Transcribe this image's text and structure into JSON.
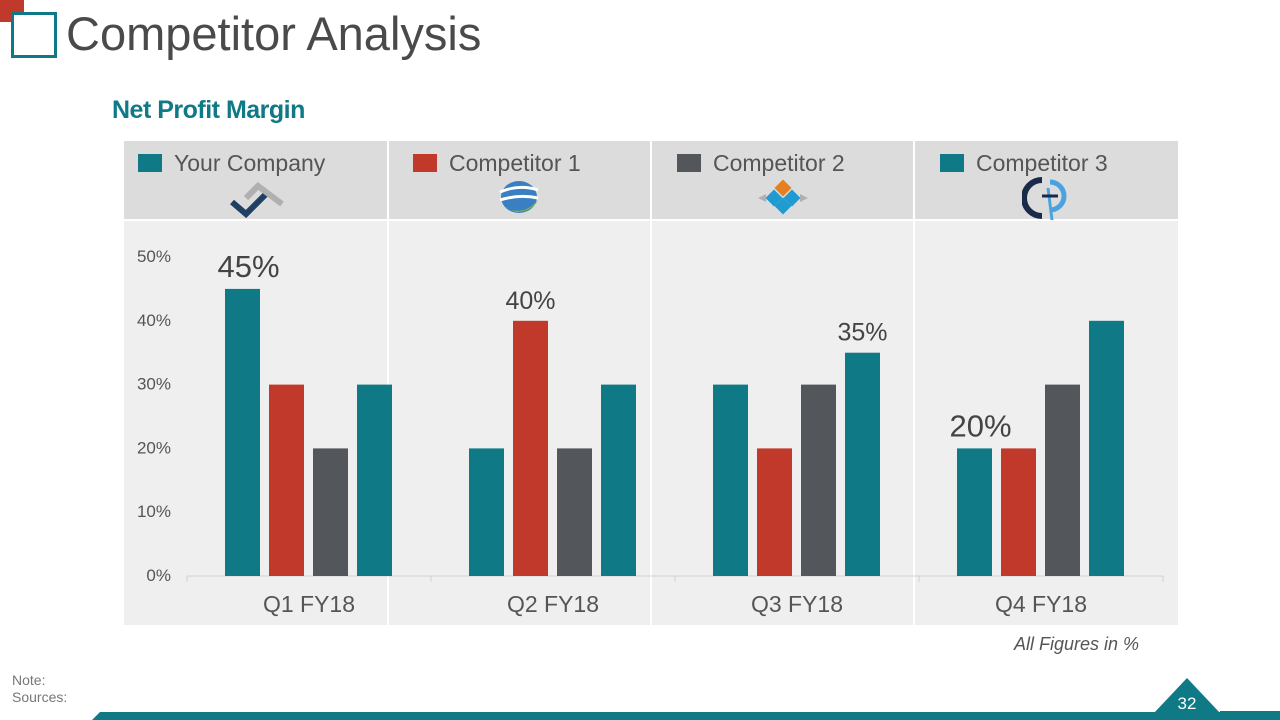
{
  "slide": {
    "title": "Competitor Analysis",
    "subtitle": "Net Profit Margin",
    "note_label": "Note:",
    "sources_label": "Sources:",
    "figures_note": "All Figures in %",
    "page_number": "32"
  },
  "legend": [
    {
      "label": "Your Company",
      "color": "#0f7a86",
      "logo": "your-company-logo-icon"
    },
    {
      "label": "Competitor 1",
      "color": "#c0392b",
      "logo": "competitor-1-logo-icon"
    },
    {
      "label": "Competitor 2",
      "color": "#53565a",
      "logo": "competitor-2-logo-icon"
    },
    {
      "label": "Competitor 3",
      "color": "#0f7a86",
      "logo": "competitor-3-logo-icon"
    }
  ],
  "colors": {
    "teal": "#0f7a86",
    "red": "#c0392b",
    "gray": "#53565a",
    "panel": "#efefef",
    "header": "#dcdcdc"
  },
  "chart_data": {
    "type": "bar",
    "categories": [
      "Q1 FY18",
      "Q2 FY18",
      "Q3 FY18",
      "Q4 FY18"
    ],
    "series": [
      {
        "name": "Your Company",
        "values": [
          45,
          20,
          30,
          20
        ]
      },
      {
        "name": "Competitor 1",
        "values": [
          30,
          40,
          20,
          20
        ]
      },
      {
        "name": "Competitor 2",
        "values": [
          20,
          20,
          30,
          30
        ]
      },
      {
        "name": "Competitor 3",
        "values": [
          30,
          30,
          35,
          40
        ]
      }
    ],
    "yticks": [
      "0%",
      "10%",
      "20%",
      "30%",
      "40%",
      "50%"
    ],
    "ylim": [
      0,
      50
    ],
    "grid": false,
    "legend_position": "top",
    "annotations": [
      {
        "category": "Q1 FY18",
        "series": "Your Company",
        "text": "45%"
      },
      {
        "category": "Q2 FY18",
        "series": "Competitor 1",
        "text": "40%"
      },
      {
        "category": "Q3 FY18",
        "series": "Competitor 3",
        "text": "35%"
      },
      {
        "category": "Q4 FY18",
        "series": "Your Company",
        "text": "20%"
      }
    ]
  }
}
